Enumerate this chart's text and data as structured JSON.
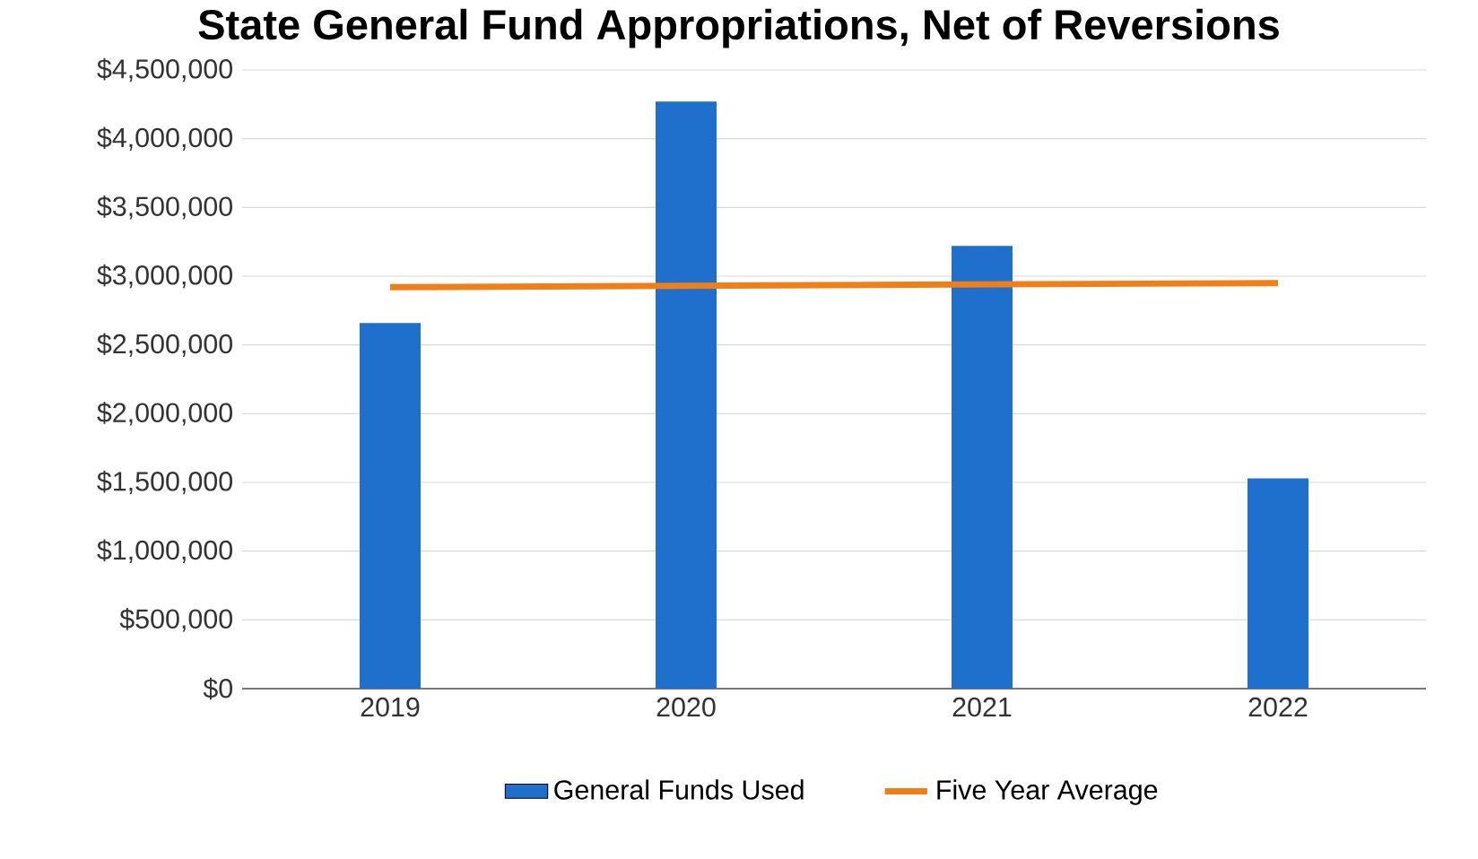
{
  "chart_data": {
    "type": "bar",
    "title": "State General Fund Appropriations, Net of Reversions",
    "categories": [
      "2019",
      "2020",
      "2021",
      "2022"
    ],
    "series": [
      {
        "name": "General Funds Used",
        "color": "#1f6fcc",
        "values": [
          2660000,
          4270000,
          3220000,
          1530000
        ]
      },
      {
        "name": "Five Year Average",
        "type": "line",
        "color": "#f07f1a",
        "values": [
          2920000,
          2930000,
          2940000,
          2950000
        ]
      }
    ],
    "ylim": [
      0,
      4500000
    ],
    "yticks": [
      {
        "value": 0,
        "label": "$0"
      },
      {
        "value": 500000,
        "label": "$500,000"
      },
      {
        "value": 1000000,
        "label": "$1,000,000"
      },
      {
        "value": 1500000,
        "label": "$1,500,000"
      },
      {
        "value": 2000000,
        "label": "$2,000,000"
      },
      {
        "value": 2500000,
        "label": "$2,500,000"
      },
      {
        "value": 3000000,
        "label": "$3,000,000"
      },
      {
        "value": 3500000,
        "label": "$3,500,000"
      },
      {
        "value": 4000000,
        "label": "$4,000,000"
      },
      {
        "value": 4500000,
        "label": "$4,500,000"
      }
    ],
    "grid": "y",
    "legend": "bottom"
  }
}
